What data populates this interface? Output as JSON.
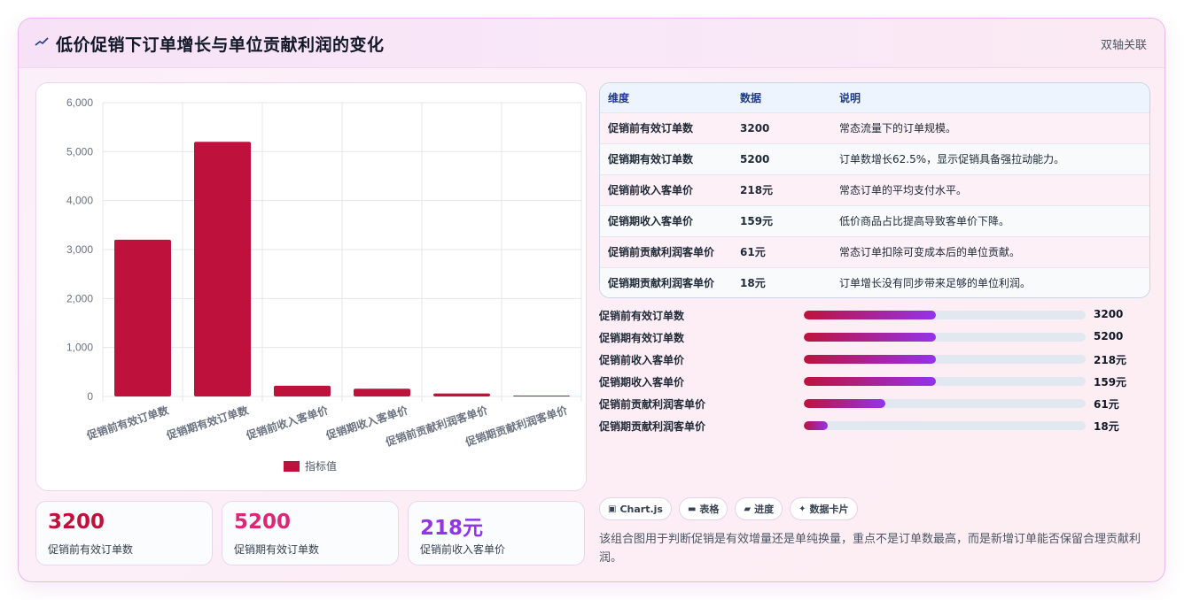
{
  "header": {
    "title": "低价促销下订单增长与单位贡献利润的变化",
    "icon": "line-chart-icon",
    "link_label": "双轴关联"
  },
  "colors": {
    "bar": "#be123c",
    "accent_pink": "#db2777",
    "accent_purple": "#9333ea",
    "progress_start": "#be123c",
    "progress_end": "#9333ea"
  },
  "chart_data": {
    "type": "bar",
    "categories": [
      "促销前有效订单数",
      "促销期有效订单数",
      "促销前收入客单价",
      "促销期收入客单价",
      "促销前贡献利润客单价",
      "促销期贡献利润客单价"
    ],
    "series": [
      {
        "name": "指标值",
        "values": [
          3200,
          5200,
          218,
          159,
          61,
          18
        ]
      }
    ],
    "ylim": [
      0,
      6000
    ],
    "yticks": [
      "6,000",
      "5,000",
      "4,000",
      "3,000",
      "2,000",
      "1,000",
      "0"
    ],
    "ytick_values": [
      6000,
      5000,
      4000,
      3000,
      2000,
      1000,
      0
    ],
    "grid": true,
    "legend": "bottom"
  },
  "stats": [
    {
      "value": "3200",
      "label": "促销前有效订单数",
      "color": "#be123c"
    },
    {
      "value": "5200",
      "label": "促销期有效订单数",
      "color": "#db2777"
    },
    {
      "value": "218元",
      "label": "促销前收入客单价",
      "color": "#9333ea"
    }
  ],
  "table": {
    "headers": [
      "维度",
      "数据",
      "说明"
    ],
    "rows": [
      [
        "促销前有效订单数",
        "3200",
        "常态流量下的订单规模。"
      ],
      [
        "促销期有效订单数",
        "5200",
        "订单数增长62.5%，显示促销具备强拉动能力。"
      ],
      [
        "促销前收入客单价",
        "218元",
        "常态订单的平均支付水平。"
      ],
      [
        "促销期收入客单价",
        "159元",
        "低价商品占比提高导致客单价下降。"
      ],
      [
        "促销前贡献利润客单价",
        "61元",
        "常态订单扣除可变成本后的单位贡献。"
      ],
      [
        "促销期贡献利润客单价",
        "18元",
        "订单增长没有同步带来足够的单位利润。"
      ]
    ]
  },
  "progress": [
    {
      "label": "促销前有效订单数",
      "value": "3200",
      "fill": 0.47
    },
    {
      "label": "促销期有效订单数",
      "value": "5200",
      "fill": 0.47
    },
    {
      "label": "促销前收入客单价",
      "value": "218元",
      "fill": 0.47
    },
    {
      "label": "促销期收入客单价",
      "value": "159元",
      "fill": 0.47
    },
    {
      "label": "促销前贡献利润客单价",
      "value": "61元",
      "fill": 0.29
    },
    {
      "label": "促销期贡献利润客单价",
      "value": "18元",
      "fill": 0.085
    }
  ],
  "chips": [
    {
      "icon": "▣",
      "label": "Chart.js"
    },
    {
      "icon": "▬",
      "label": "表格"
    },
    {
      "icon": "▰",
      "label": "进度"
    },
    {
      "icon": "✦",
      "label": "数据卡片"
    }
  ],
  "description": "该组合图用于判断促销是有效增量还是单纯换量，重点不是订单数最高，而是新增订单能否保留合理贡献利润。"
}
